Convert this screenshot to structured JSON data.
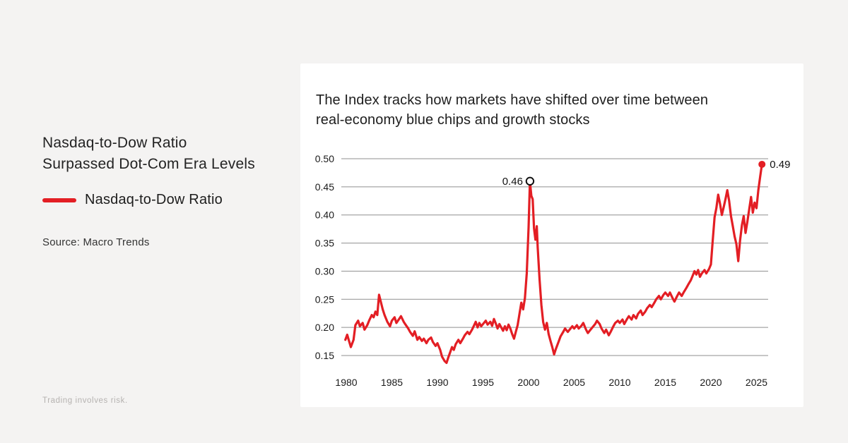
{
  "left_panel": {
    "title_line1": "Nasdaq-to-Dow Ratio",
    "title_line2": "Surpassed Dot-Com Era Levels",
    "legend": {
      "label": "Nasdaq-to-Dow Ratio",
      "swatch_color": "#e31e24"
    },
    "source": "Source: Macro Trends",
    "disclaimer": "Trading involves risk."
  },
  "card": {
    "subtitle_line1": "The Index tracks how markets have shifted over time between",
    "subtitle_line2": "real-economy blue chips and growth stocks"
  },
  "colors": {
    "background": "#f4f3f2",
    "card": "#ffffff",
    "line": "#e31e24",
    "grid": "#8f8f8f",
    "tick_text": "#1a1a1a",
    "annotation_text": "#111111"
  },
  "chart_data": {
    "type": "line",
    "title": "Nasdaq-to-Dow Ratio Surpassed Dot-Com Era Levels",
    "subtitle": "The Index tracks how markets have shifted over time between real-economy blue chips and growth stocks",
    "xlabel": "",
    "ylabel": "",
    "grid": true,
    "legend_position": "left-panel",
    "ylim": [
      0.15,
      0.5
    ],
    "xlim": [
      1979.9,
      2026.2
    ],
    "yticks": [
      0.5,
      0.45,
      0.4,
      0.35,
      0.3,
      0.25,
      0.2,
      0.15
    ],
    "xticks": [
      1980,
      1985,
      1990,
      1995,
      2000,
      2005,
      2010,
      2015,
      2020,
      2025
    ],
    "annotations": [
      {
        "x": 2000.15,
        "y": 0.46,
        "label": "0.46",
        "marker": "open-circle"
      },
      {
        "x": 2025.6,
        "y": 0.49,
        "label": "0.49",
        "marker": "filled-dot"
      }
    ],
    "series": [
      {
        "name": "Nasdaq-to-Dow Ratio",
        "color": "#e31e24",
        "points": [
          [
            1979.9,
            0.178
          ],
          [
            1980.1,
            0.187
          ],
          [
            1980.3,
            0.176
          ],
          [
            1980.5,
            0.165
          ],
          [
            1980.8,
            0.178
          ],
          [
            1981.0,
            0.204
          ],
          [
            1981.3,
            0.212
          ],
          [
            1981.5,
            0.202
          ],
          [
            1981.8,
            0.208
          ],
          [
            1982.0,
            0.196
          ],
          [
            1982.3,
            0.204
          ],
          [
            1982.5,
            0.212
          ],
          [
            1982.8,
            0.222
          ],
          [
            1983.0,
            0.218
          ],
          [
            1983.2,
            0.228
          ],
          [
            1983.4,
            0.222
          ],
          [
            1983.6,
            0.258
          ],
          [
            1983.8,
            0.245
          ],
          [
            1984.0,
            0.232
          ],
          [
            1984.2,
            0.222
          ],
          [
            1984.5,
            0.21
          ],
          [
            1984.8,
            0.202
          ],
          [
            1985.0,
            0.212
          ],
          [
            1985.3,
            0.218
          ],
          [
            1985.5,
            0.208
          ],
          [
            1985.8,
            0.215
          ],
          [
            1986.0,
            0.22
          ],
          [
            1986.3,
            0.21
          ],
          [
            1986.5,
            0.205
          ],
          [
            1986.8,
            0.198
          ],
          [
            1987.0,
            0.192
          ],
          [
            1987.3,
            0.185
          ],
          [
            1987.5,
            0.193
          ],
          [
            1987.8,
            0.178
          ],
          [
            1988.0,
            0.183
          ],
          [
            1988.3,
            0.176
          ],
          [
            1988.5,
            0.18
          ],
          [
            1988.8,
            0.172
          ],
          [
            1989.0,
            0.178
          ],
          [
            1989.3,
            0.182
          ],
          [
            1989.5,
            0.174
          ],
          [
            1989.8,
            0.167
          ],
          [
            1990.0,
            0.172
          ],
          [
            1990.3,
            0.16
          ],
          [
            1990.5,
            0.148
          ],
          [
            1990.8,
            0.14
          ],
          [
            1991.0,
            0.137
          ],
          [
            1991.2,
            0.147
          ],
          [
            1991.4,
            0.156
          ],
          [
            1991.6,
            0.165
          ],
          [
            1991.8,
            0.16
          ],
          [
            1992.0,
            0.17
          ],
          [
            1992.3,
            0.178
          ],
          [
            1992.5,
            0.172
          ],
          [
            1992.8,
            0.18
          ],
          [
            1993.0,
            0.186
          ],
          [
            1993.3,
            0.192
          ],
          [
            1993.5,
            0.188
          ],
          [
            1993.8,
            0.196
          ],
          [
            1994.0,
            0.203
          ],
          [
            1994.2,
            0.21
          ],
          [
            1994.4,
            0.2
          ],
          [
            1994.6,
            0.208
          ],
          [
            1994.8,
            0.202
          ],
          [
            1995.0,
            0.206
          ],
          [
            1995.3,
            0.212
          ],
          [
            1995.5,
            0.205
          ],
          [
            1995.8,
            0.21
          ],
          [
            1996.0,
            0.203
          ],
          [
            1996.2,
            0.215
          ],
          [
            1996.4,
            0.207
          ],
          [
            1996.6,
            0.198
          ],
          [
            1996.8,
            0.206
          ],
          [
            1997.0,
            0.2
          ],
          [
            1997.2,
            0.194
          ],
          [
            1997.4,
            0.202
          ],
          [
            1997.6,
            0.195
          ],
          [
            1997.8,
            0.205
          ],
          [
            1998.0,
            0.198
          ],
          [
            1998.2,
            0.188
          ],
          [
            1998.4,
            0.18
          ],
          [
            1998.6,
            0.192
          ],
          [
            1998.8,
            0.204
          ],
          [
            1999.0,
            0.224
          ],
          [
            1999.2,
            0.244
          ],
          [
            1999.4,
            0.232
          ],
          [
            1999.6,
            0.252
          ],
          [
            1999.8,
            0.296
          ],
          [
            2000.0,
            0.378
          ],
          [
            2000.15,
            0.46
          ],
          [
            2000.3,
            0.434
          ],
          [
            2000.45,
            0.428
          ],
          [
            2000.6,
            0.376
          ],
          [
            2000.75,
            0.356
          ],
          [
            2000.9,
            0.38
          ],
          [
            2001.0,
            0.342
          ],
          [
            2001.2,
            0.286
          ],
          [
            2001.4,
            0.24
          ],
          [
            2001.6,
            0.21
          ],
          [
            2001.8,
            0.196
          ],
          [
            2002.0,
            0.208
          ],
          [
            2002.2,
            0.188
          ],
          [
            2002.4,
            0.176
          ],
          [
            2002.6,
            0.165
          ],
          [
            2002.8,
            0.152
          ],
          [
            2003.0,
            0.162
          ],
          [
            2003.3,
            0.175
          ],
          [
            2003.5,
            0.184
          ],
          [
            2003.8,
            0.192
          ],
          [
            2004.0,
            0.198
          ],
          [
            2004.3,
            0.192
          ],
          [
            2004.5,
            0.196
          ],
          [
            2004.8,
            0.202
          ],
          [
            2005.0,
            0.198
          ],
          [
            2005.3,
            0.204
          ],
          [
            2005.5,
            0.198
          ],
          [
            2005.8,
            0.203
          ],
          [
            2006.0,
            0.208
          ],
          [
            2006.3,
            0.196
          ],
          [
            2006.5,
            0.19
          ],
          [
            2006.8,
            0.196
          ],
          [
            2007.0,
            0.2
          ],
          [
            2007.3,
            0.206
          ],
          [
            2007.5,
            0.212
          ],
          [
            2007.8,
            0.206
          ],
          [
            2008.0,
            0.198
          ],
          [
            2008.3,
            0.19
          ],
          [
            2008.5,
            0.196
          ],
          [
            2008.8,
            0.186
          ],
          [
            2009.0,
            0.192
          ],
          [
            2009.3,
            0.202
          ],
          [
            2009.5,
            0.208
          ],
          [
            2009.8,
            0.212
          ],
          [
            2010.0,
            0.208
          ],
          [
            2010.3,
            0.214
          ],
          [
            2010.5,
            0.206
          ],
          [
            2010.8,
            0.215
          ],
          [
            2011.0,
            0.22
          ],
          [
            2011.3,
            0.214
          ],
          [
            2011.5,
            0.222
          ],
          [
            2011.8,
            0.216
          ],
          [
            2012.0,
            0.224
          ],
          [
            2012.3,
            0.23
          ],
          [
            2012.5,
            0.222
          ],
          [
            2012.8,
            0.228
          ],
          [
            2013.0,
            0.234
          ],
          [
            2013.3,
            0.24
          ],
          [
            2013.5,
            0.236
          ],
          [
            2013.8,
            0.244
          ],
          [
            2014.0,
            0.25
          ],
          [
            2014.3,
            0.256
          ],
          [
            2014.5,
            0.25
          ],
          [
            2014.8,
            0.258
          ],
          [
            2015.0,
            0.262
          ],
          [
            2015.3,
            0.256
          ],
          [
            2015.5,
            0.262
          ],
          [
            2015.8,
            0.252
          ],
          [
            2016.0,
            0.246
          ],
          [
            2016.3,
            0.256
          ],
          [
            2016.5,
            0.262
          ],
          [
            2016.8,
            0.256
          ],
          [
            2017.0,
            0.262
          ],
          [
            2017.3,
            0.27
          ],
          [
            2017.5,
            0.276
          ],
          [
            2017.8,
            0.284
          ],
          [
            2018.0,
            0.292
          ],
          [
            2018.2,
            0.3
          ],
          [
            2018.4,
            0.294
          ],
          [
            2018.6,
            0.302
          ],
          [
            2018.8,
            0.29
          ],
          [
            2019.0,
            0.296
          ],
          [
            2019.3,
            0.302
          ],
          [
            2019.5,
            0.296
          ],
          [
            2019.8,
            0.304
          ],
          [
            2020.0,
            0.312
          ],
          [
            2020.2,
            0.355
          ],
          [
            2020.4,
            0.396
          ],
          [
            2020.6,
            0.412
          ],
          [
            2020.8,
            0.436
          ],
          [
            2021.0,
            0.42
          ],
          [
            2021.2,
            0.4
          ],
          [
            2021.4,
            0.414
          ],
          [
            2021.6,
            0.428
          ],
          [
            2021.8,
            0.444
          ],
          [
            2022.0,
            0.425
          ],
          [
            2022.2,
            0.398
          ],
          [
            2022.4,
            0.38
          ],
          [
            2022.6,
            0.362
          ],
          [
            2022.8,
            0.348
          ],
          [
            2023.0,
            0.318
          ],
          [
            2023.2,
            0.355
          ],
          [
            2023.4,
            0.382
          ],
          [
            2023.6,
            0.398
          ],
          [
            2023.8,
            0.368
          ],
          [
            2024.0,
            0.388
          ],
          [
            2024.2,
            0.41
          ],
          [
            2024.4,
            0.432
          ],
          [
            2024.6,
            0.404
          ],
          [
            2024.8,
            0.422
          ],
          [
            2025.0,
            0.412
          ],
          [
            2025.2,
            0.444
          ],
          [
            2025.4,
            0.468
          ],
          [
            2025.6,
            0.49
          ]
        ]
      }
    ]
  }
}
